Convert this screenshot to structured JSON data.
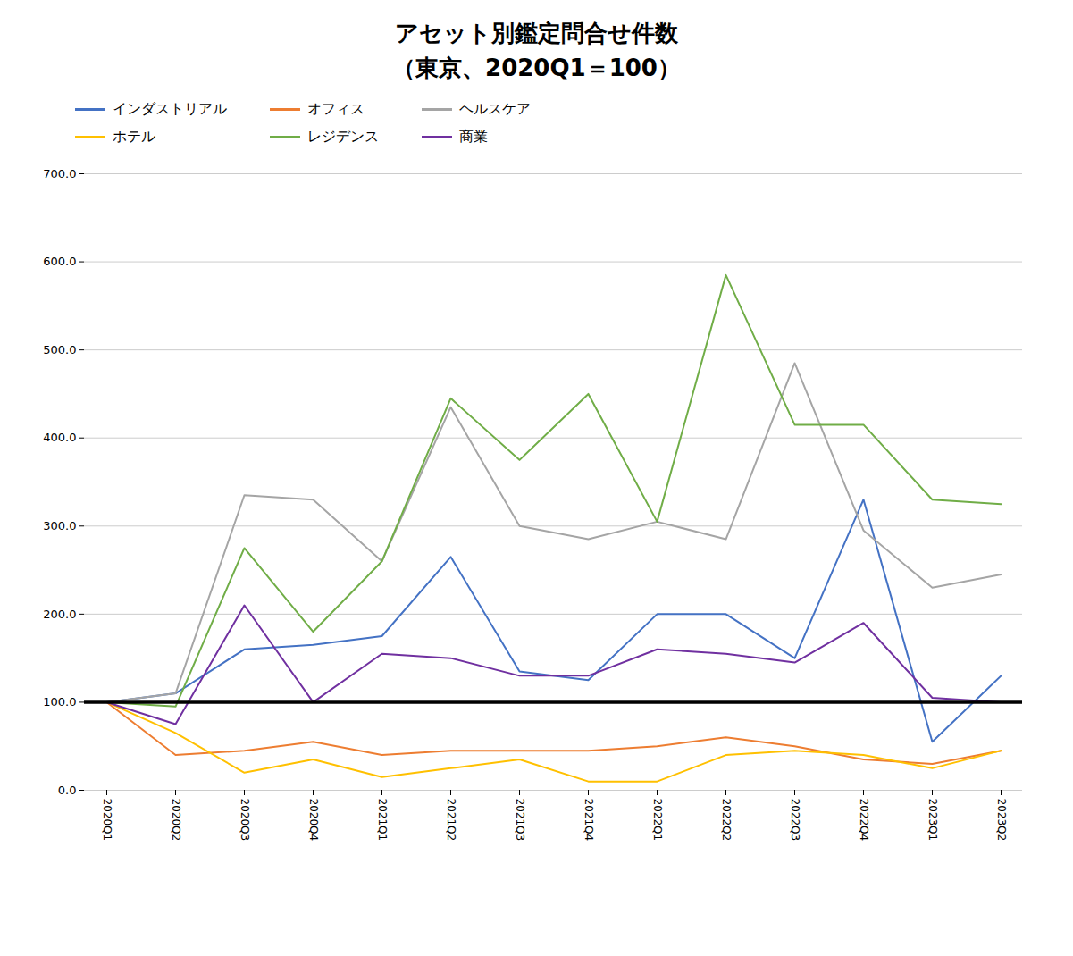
{
  "chart_data": {
    "type": "line",
    "title": "アセット別鑑定問合せ件数",
    "subtitle": "（東京、2020Q1＝100）",
    "categories": [
      "2020Q1",
      "2020Q2",
      "2020Q3",
      "2020Q4",
      "2021Q1",
      "2021Q2",
      "2021Q3",
      "2021Q4",
      "2022Q1",
      "2022Q2",
      "2022Q3",
      "2022Q4",
      "2023Q1",
      "2023Q2"
    ],
    "series": [
      {
        "name": "インダストリアル",
        "color": "#4472C4",
        "values": [
          100,
          110,
          160,
          165,
          175,
          265,
          135,
          125,
          200,
          200,
          150,
          330,
          55,
          130
        ]
      },
      {
        "name": "オフィス",
        "color": "#ED7D31",
        "values": [
          100,
          40,
          45,
          55,
          40,
          45,
          45,
          45,
          50,
          60,
          50,
          35,
          30,
          45
        ]
      },
      {
        "name": "ヘルスケア",
        "color": "#A5A5A5",
        "values": [
          100,
          110,
          335,
          330,
          260,
          435,
          300,
          285,
          305,
          285,
          485,
          295,
          230,
          245
        ]
      },
      {
        "name": "ホテル",
        "color": "#FFC000",
        "values": [
          100,
          65,
          20,
          35,
          15,
          25,
          35,
          10,
          10,
          40,
          45,
          40,
          25,
          45
        ]
      },
      {
        "name": "レジデンス",
        "color": "#70AD47",
        "values": [
          100,
          95,
          275,
          180,
          260,
          445,
          375,
          450,
          305,
          585,
          415,
          415,
          330,
          325
        ]
      },
      {
        "name": "商業",
        "color": "#7030A0",
        "values": [
          100,
          75,
          210,
          100,
          155,
          150,
          130,
          130,
          160,
          155,
          145,
          190,
          105,
          100
        ]
      }
    ],
    "reference_line": 100,
    "ylim": [
      0,
      700
    ],
    "yticks": [
      {
        "value": 0,
        "label": "0.0"
      },
      {
        "value": 100,
        "label": "100.0"
      },
      {
        "value": 200,
        "label": "200.0"
      },
      {
        "value": 300,
        "label": "300.0"
      },
      {
        "value": 400,
        "label": "400.0"
      },
      {
        "value": 500,
        "label": "500.0"
      },
      {
        "value": 600,
        "label": "600.0"
      },
      {
        "value": 700,
        "label": "700.0"
      }
    ],
    "grid": true,
    "legend": "top"
  }
}
